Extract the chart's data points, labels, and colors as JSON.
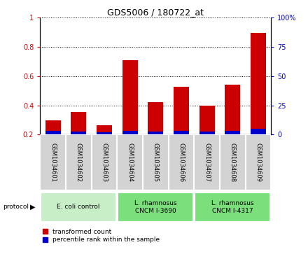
{
  "title": "GDS5006 / 180722_at",
  "samples": [
    "GSM1034601",
    "GSM1034602",
    "GSM1034603",
    "GSM1034604",
    "GSM1034605",
    "GSM1034606",
    "GSM1034607",
    "GSM1034608",
    "GSM1034609"
  ],
  "transformed_count": [
    0.3,
    0.355,
    0.265,
    0.71,
    0.42,
    0.53,
    0.4,
    0.54,
    0.895
  ],
  "blue_bar_height": [
    0.025,
    0.022,
    0.018,
    0.028,
    0.022,
    0.025,
    0.022,
    0.025,
    0.038
  ],
  "ylim_left": [
    0.2,
    1.0
  ],
  "ylim_right": [
    0,
    100
  ],
  "yticks_left": [
    0.2,
    0.4,
    0.6,
    0.8,
    1.0
  ],
  "yticklabels_left": [
    "0.2",
    "0.4",
    "0.6",
    "0.8",
    "1"
  ],
  "yticks_right": [
    0,
    25,
    50,
    75,
    100
  ],
  "yticklabels_right": [
    "0",
    "25",
    "50",
    "75",
    "100%"
  ],
  "groups": [
    {
      "label": "E. coli control",
      "start": 0,
      "end": 3,
      "color": "#c8eec8"
    },
    {
      "label": "L. rhamnosus\nCNCM I-3690",
      "start": 3,
      "end": 6,
      "color": "#7be07b"
    },
    {
      "label": "L. rhamnosus\nCNCM I-4317",
      "start": 6,
      "end": 9,
      "color": "#7be07b"
    }
  ],
  "bar_color_red": "#cc0000",
  "bar_color_blue": "#0000cc",
  "protocol_label": "protocol",
  "legend_red": "transformed count",
  "legend_blue": "percentile rank within the sample"
}
